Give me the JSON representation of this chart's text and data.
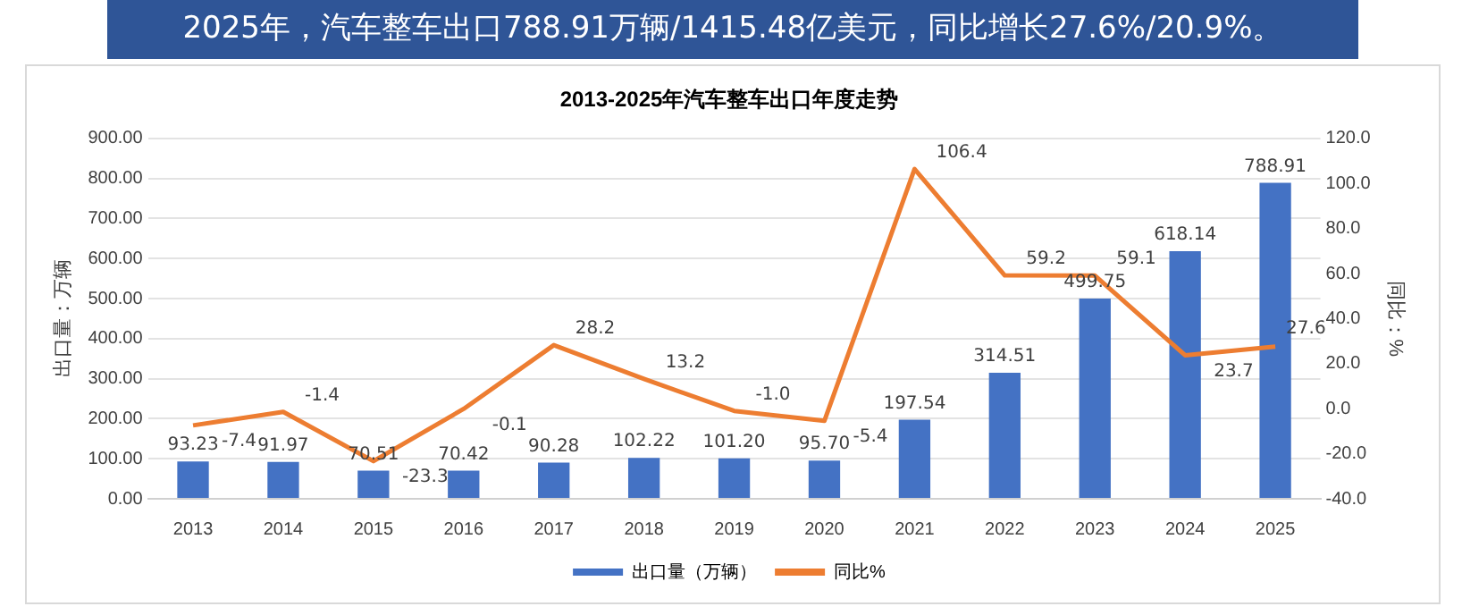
{
  "chart_data": {
    "type": "bar",
    "title": "2025年，汽车整车出口788.91万辆/1415.48亿美元，同比增长27.6%/20.9%。",
    "subtitle": "2013-2025年汽车整车出口年度走势",
    "ylabel": "出口量：万辆",
    "y2label": "同比：%",
    "categories": [
      "2013",
      "2014",
      "2015",
      "2016",
      "2017",
      "2018",
      "2019",
      "2020",
      "2021",
      "2022",
      "2023",
      "2024",
      "2025"
    ],
    "series": [
      {
        "name": "出口量（万辆）",
        "color": "#4472c4",
        "values": [
          93.23,
          91.97,
          70.51,
          70.42,
          90.28,
          102.22,
          101.2,
          95.7,
          197.54,
          314.51,
          499.75,
          618.14,
          788.91
        ],
        "value_labels": [
          "93.23",
          "91.97",
          "70.51",
          "70.42",
          "90.28",
          "102.22",
          "101.20",
          "95.70",
          "197.54",
          "314.51",
          "499.75",
          "618.14",
          "788.91"
        ]
      },
      {
        "name": "同比%",
        "type": "line",
        "axis": "y2",
        "color": "#ed7d31",
        "values": [
          -7.4,
          -1.4,
          -23.3,
          -0.1,
          28.2,
          13.2,
          -1.0,
          -5.4,
          106.4,
          59.2,
          59.1,
          23.7,
          27.6
        ],
        "value_labels": [
          "-7.4",
          "-1.4",
          "-23.3",
          "-0.1",
          "28.2",
          "13.2",
          "-1.0",
          "-5.4",
          "106.4",
          "59.2",
          "59.1",
          "23.7",
          "27.6"
        ]
      }
    ],
    "ylim": [
      0,
      900
    ],
    "yticks": [
      {
        "value": 0,
        "label": "0.00"
      },
      {
        "value": 100,
        "label": "100.00"
      },
      {
        "value": 200,
        "label": "200.00"
      },
      {
        "value": 300,
        "label": "300.00"
      },
      {
        "value": 400,
        "label": "400.00"
      },
      {
        "value": 500,
        "label": "500.00"
      },
      {
        "value": 600,
        "label": "600.00"
      },
      {
        "value": 700,
        "label": "700.00"
      },
      {
        "value": 800,
        "label": "800.00"
      },
      {
        "value": 900,
        "label": "900.00"
      }
    ],
    "y2lim": [
      -40,
      120
    ],
    "y2ticks": [
      {
        "value": -40,
        "label": "-40.0"
      },
      {
        "value": -20,
        "label": "-20.0"
      },
      {
        "value": 0,
        "label": "0.0"
      },
      {
        "value": 20,
        "label": "20.0"
      },
      {
        "value": 40,
        "label": "40.0"
      },
      {
        "value": 60,
        "label": "60.0"
      },
      {
        "value": 80,
        "label": "80.0"
      },
      {
        "value": 100,
        "label": "100.0"
      },
      {
        "value": 120,
        "label": "120.0"
      }
    ],
    "grid": "y",
    "legend": "bottom",
    "marker": "none"
  }
}
